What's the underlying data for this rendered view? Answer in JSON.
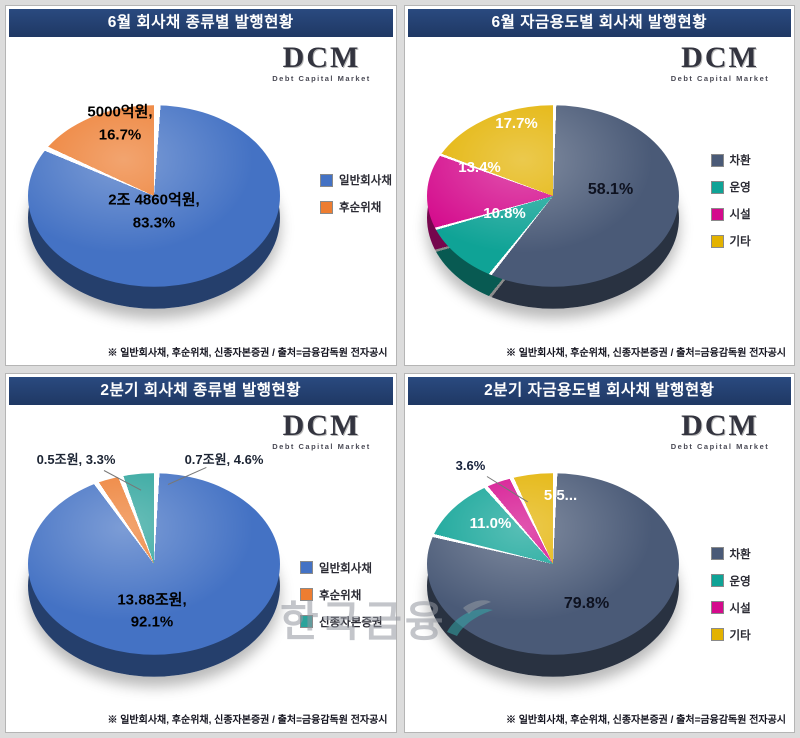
{
  "watermark": "한국금융",
  "logo": {
    "name": "DCM",
    "tagline": "Debt Capital Market"
  },
  "footnote": "※ 일반회사채, 후순위채, 신종자본증권 / 출처=금융감독원 전자공시",
  "colors": {
    "title_bar": "#1F3864",
    "general_bond_blue": "#4472C4",
    "subordinated_orange": "#ED7D31",
    "hybrid_teal": "#2BA39B",
    "refinancing_slate": "#4A5A77",
    "operating_teal": "#0FA396",
    "facility_magenta": "#D40A8C",
    "other_gold": "#E3B200"
  },
  "chart_data": [
    {
      "type": "pie",
      "title": "6월 회사채 종류별 발행현황",
      "legend_position": "right",
      "gap_deg": 3,
      "slices": [
        {
          "label": "일반회사채",
          "value_pct": 83.3,
          "amount": "2조 4860억원",
          "color": "#4472C4",
          "data_label": "2조 4860억원,\n83.3%",
          "label_color": "#000000"
        },
        {
          "label": "후순위채",
          "value_pct": 16.7,
          "amount": "5000억원",
          "color": "#ED7D31",
          "data_label": "5000억원,\n16.7%",
          "label_color": "#000000"
        }
      ]
    },
    {
      "type": "pie",
      "title": "6월 자금용도별 회사채 발행현황",
      "legend_position": "right",
      "gap_deg": 1.5,
      "slices": [
        {
          "label": "차환",
          "value_pct": 58.1,
          "color": "#4A5A77",
          "data_label": "58.1%",
          "label_color": "#0e1220"
        },
        {
          "label": "운영",
          "value_pct": 10.8,
          "color": "#0FA396",
          "data_label": "10.8%",
          "label_color": "#ffffff"
        },
        {
          "label": "시설",
          "value_pct": 13.4,
          "color": "#D40A8C",
          "data_label": "13.4%",
          "label_color": "#ffffff"
        },
        {
          "label": "기타",
          "value_pct": 17.7,
          "color": "#E3B200",
          "data_label": "17.7%",
          "label_color": "#ffffff"
        }
      ]
    },
    {
      "type": "pie",
      "title": "2분기 회사채 종류별 발행현황",
      "legend_position": "right",
      "gap_deg": 2.5,
      "slices": [
        {
          "label": "일반회사채",
          "value_pct": 92.1,
          "amount": "13.88조원",
          "color": "#4472C4",
          "data_label": "13.88조원,\n92.1%",
          "label_color": "#000000"
        },
        {
          "label": "후순위채",
          "value_pct": 3.3,
          "amount": "0.5조원",
          "color": "#ED7D31",
          "data_label": "0.5조원, 3.3%",
          "label_color": "#1c2433"
        },
        {
          "label": "신종자본증권",
          "value_pct": 4.6,
          "amount": "0.7조원",
          "color": "#2BA39B",
          "data_label": "0.7조원, 4.6%",
          "label_color": "#1c2433"
        }
      ]
    },
    {
      "type": "pie",
      "title": "2분기 자금용도별 회사채 발행현황",
      "legend_position": "right",
      "gap_deg": 2,
      "slices": [
        {
          "label": "차환",
          "value_pct": 79.8,
          "color": "#4A5A77",
          "data_label": "79.8%",
          "label_color": "#0e1220"
        },
        {
          "label": "운영",
          "value_pct": 11.0,
          "color": "#0FA396",
          "data_label": "11.0%",
          "label_color": "#ffffff"
        },
        {
          "label": "시설",
          "value_pct": 3.6,
          "color": "#D40A8C",
          "data_label": "3.6%",
          "label_color": "#16213a"
        },
        {
          "label": "기타",
          "value_pct": 5.5,
          "color": "#E3B200",
          "data_label": "5.5...",
          "label_color": "#ffffff"
        }
      ]
    }
  ]
}
